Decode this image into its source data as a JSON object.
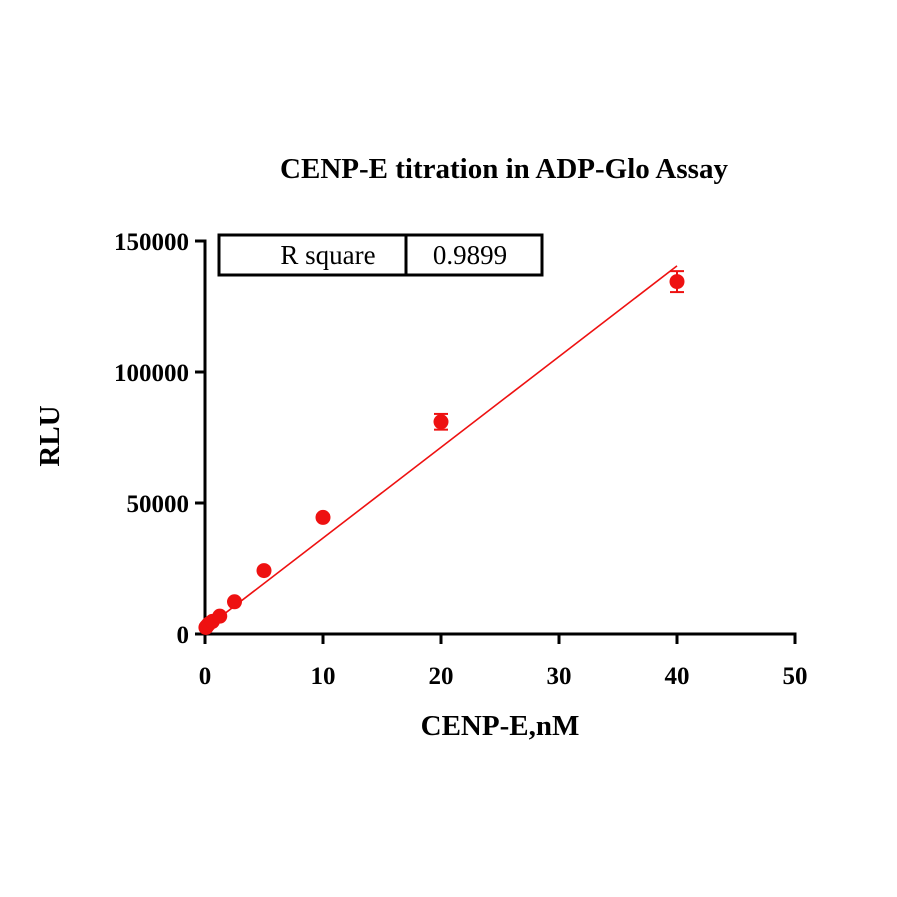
{
  "colors": {
    "series": "#ee1111",
    "axis": "#000000",
    "background": "#ffffff"
  },
  "chart_data": {
    "type": "scatter",
    "title": "CENP-E titration in ADP-Glo Assay",
    "xlabel": "CENP-E,nM",
    "ylabel": "RLU",
    "xlim": [
      0,
      50
    ],
    "ylim": [
      0,
      150000
    ],
    "x_ticks": [
      "0",
      "10",
      "20",
      "30",
      "40",
      "50"
    ],
    "y_ticks": [
      "0",
      "50000",
      "100000",
      "150000"
    ],
    "x_tick_values": [
      0,
      10,
      20,
      30,
      40,
      50
    ],
    "y_tick_values": [
      0,
      50000,
      100000,
      150000
    ],
    "grid": false,
    "series": [
      {
        "points": [
          {
            "x": 0.078,
            "y": 2500,
            "err": 0
          },
          {
            "x": 0.156,
            "y": 3000,
            "err": 0
          },
          {
            "x": 0.3125,
            "y": 3800,
            "err": 0
          },
          {
            "x": 0.625,
            "y": 4800,
            "err": 0
          },
          {
            "x": 1.25,
            "y": 6800,
            "err": 0
          },
          {
            "x": 2.5,
            "y": 12300,
            "err": 500
          },
          {
            "x": 5,
            "y": 24200,
            "err": 600
          },
          {
            "x": 10,
            "y": 44500,
            "err": 800
          },
          {
            "x": 20,
            "y": 81000,
            "err": 3000
          },
          {
            "x": 40,
            "y": 134500,
            "err": 4000
          }
        ]
      }
    ],
    "fit_line": {
      "x": [
        0,
        40
      ],
      "y": [
        2000,
        140500
      ]
    },
    "stats_table": {
      "label": "R square",
      "value": "0.9899"
    }
  }
}
